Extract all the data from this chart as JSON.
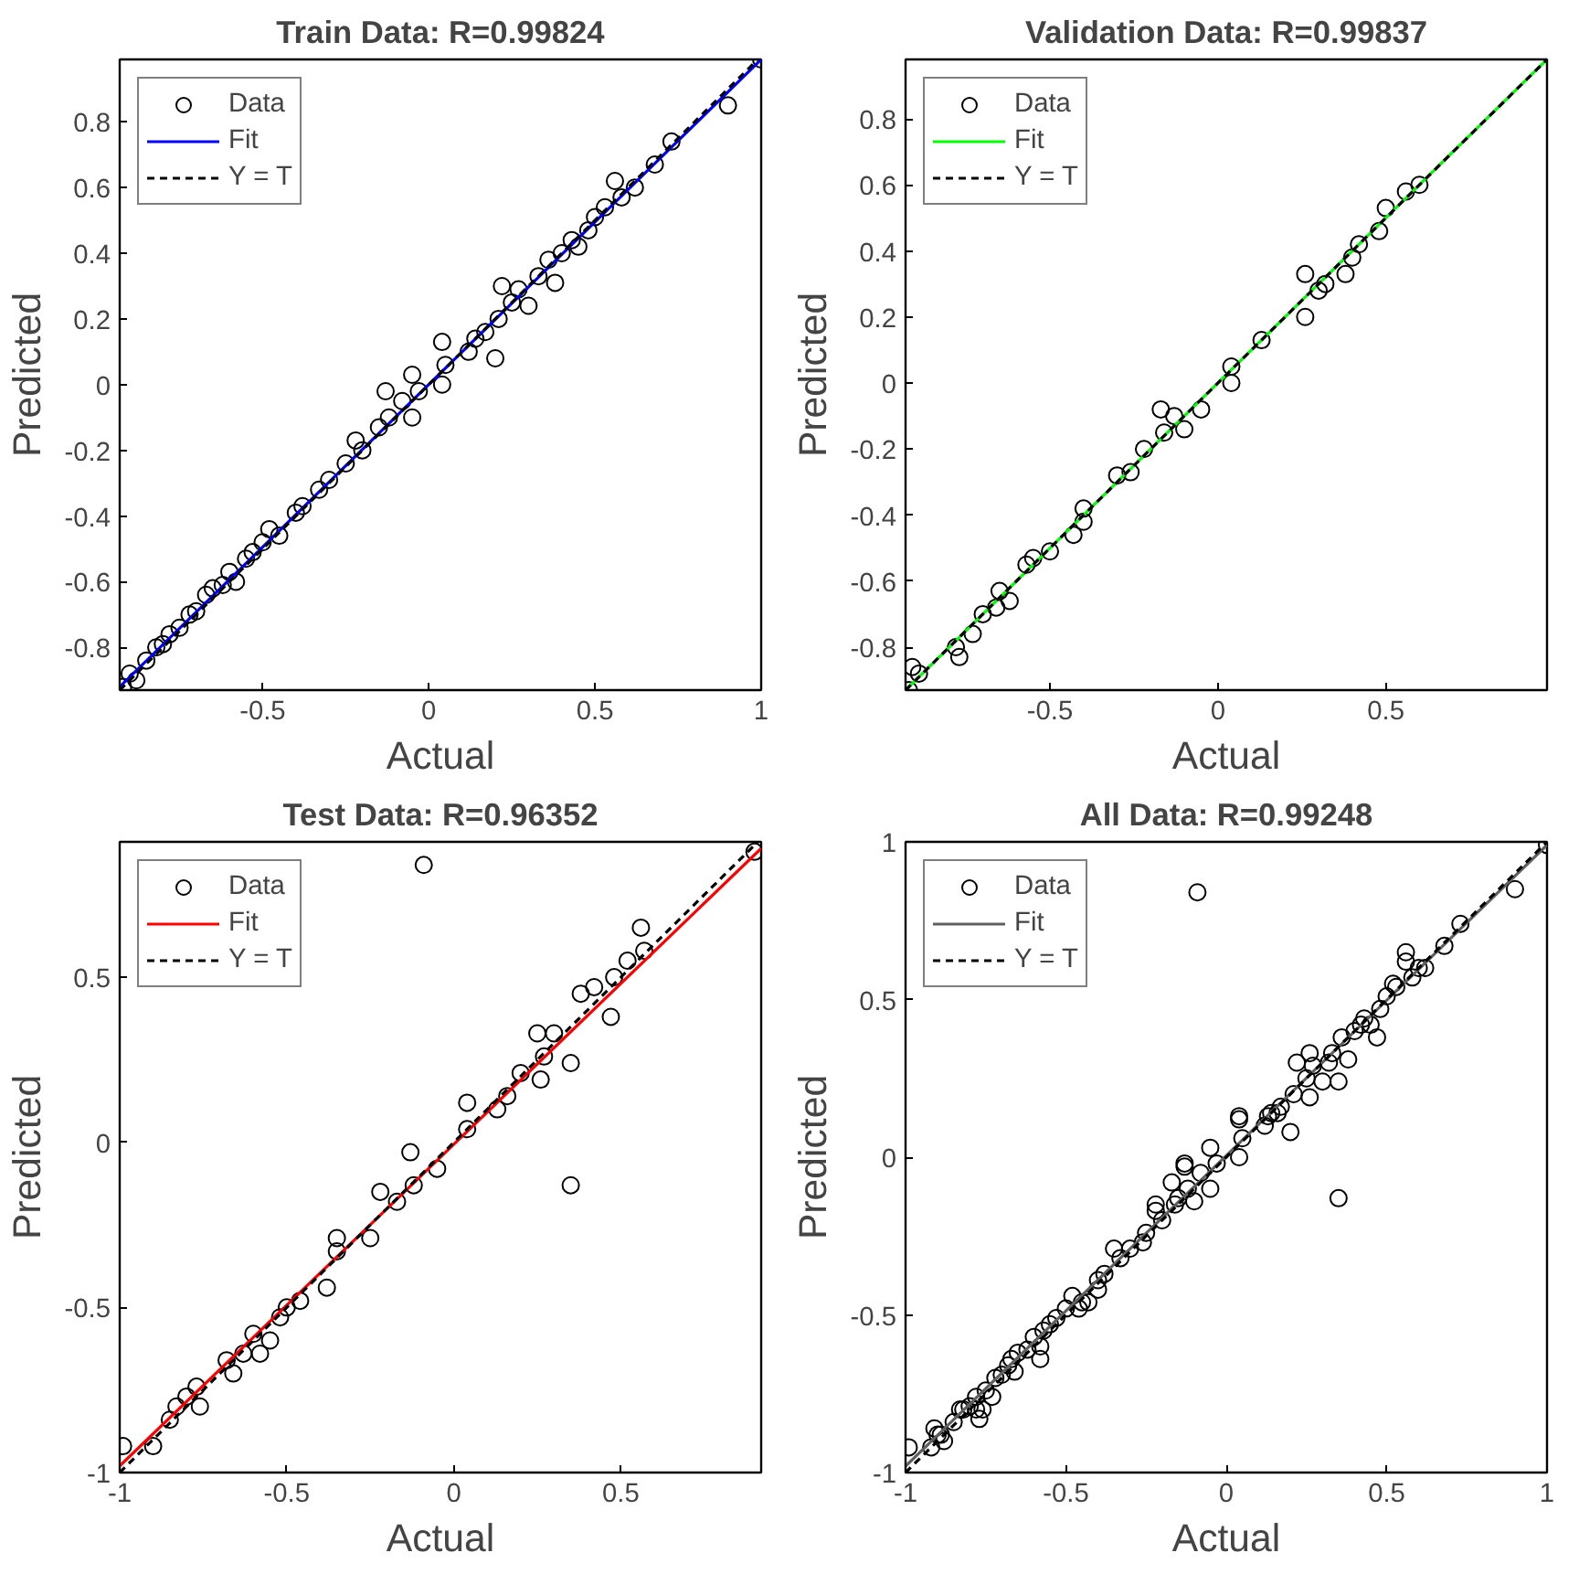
{
  "chart_data": [
    {
      "type": "scatter",
      "title": "Train Data: R=0.99824",
      "xlabel": "Actual",
      "ylabel": "Predicted",
      "xlim": [
        -0.93,
        1.0
      ],
      "ylim": [
        -0.93,
        0.99
      ],
      "xticks": [
        -0.5,
        0,
        0.5,
        1
      ],
      "yticks": [
        -0.8,
        -0.6,
        -0.4,
        -0.2,
        0,
        0.2,
        0.4,
        0.6,
        0.8
      ],
      "grid": false,
      "legend": "top left",
      "series": [
        {
          "name": "Data",
          "type": "scatter",
          "marker": "circle",
          "color": "#000000",
          "x": [
            -0.92,
            -0.9,
            -0.88,
            -0.85,
            -0.82,
            -0.8,
            -0.78,
            -0.75,
            -0.72,
            -0.7,
            -0.67,
            -0.65,
            -0.62,
            -0.6,
            -0.58,
            -0.55,
            -0.53,
            -0.5,
            -0.48,
            -0.45,
            -0.4,
            -0.38,
            -0.33,
            -0.3,
            -0.25,
            -0.22,
            -0.2,
            -0.15,
            -0.13,
            -0.12,
            -0.08,
            -0.05,
            -0.05,
            -0.03,
            0.04,
            0.04,
            0.05,
            0.12,
            0.14,
            0.17,
            0.2,
            0.21,
            0.22,
            0.25,
            0.27,
            0.3,
            0.33,
            0.36,
            0.38,
            0.4,
            0.43,
            0.45,
            0.48,
            0.5,
            0.53,
            0.56,
            0.58,
            0.62,
            0.68,
            0.73,
            0.9,
            1.0
          ],
          "values": [
            -0.92,
            -0.88,
            -0.9,
            -0.84,
            -0.8,
            -0.79,
            -0.76,
            -0.74,
            -0.7,
            -0.69,
            -0.64,
            -0.62,
            -0.61,
            -0.57,
            -0.6,
            -0.53,
            -0.51,
            -0.48,
            -0.44,
            -0.46,
            -0.39,
            -0.37,
            -0.32,
            -0.29,
            -0.24,
            -0.17,
            -0.2,
            -0.13,
            -0.02,
            -0.1,
            -0.05,
            0.03,
            -0.1,
            -0.02,
            0.13,
            0.0,
            0.06,
            0.1,
            0.14,
            0.16,
            0.08,
            0.2,
            0.3,
            0.25,
            0.29,
            0.24,
            0.33,
            0.38,
            0.31,
            0.4,
            0.44,
            0.42,
            0.47,
            0.51,
            0.54,
            0.62,
            0.57,
            0.6,
            0.67,
            0.74,
            0.85,
            0.99
          ]
        },
        {
          "name": "Fit",
          "type": "line",
          "line_style": "solid",
          "color": "#0000ff",
          "x": [
            -0.93,
            1.0
          ],
          "values": [
            -0.92,
            0.99
          ]
        },
        {
          "name": "Y = T",
          "type": "line",
          "line_style": "dashed",
          "color": "#000000",
          "x": [
            -0.93,
            0.99
          ],
          "values": [
            -0.93,
            0.99
          ]
        }
      ]
    },
    {
      "type": "scatter",
      "title": "Validation Data: R=0.99837",
      "xlabel": "Actual",
      "ylabel": "Predicted",
      "xlim": [
        -0.93,
        0.98
      ],
      "ylim": [
        -0.93,
        0.98
      ],
      "xticks": [
        -0.5,
        0,
        0.5
      ],
      "yticks": [
        -0.8,
        -0.6,
        -0.4,
        -0.2,
        0,
        0.2,
        0.4,
        0.6,
        0.8
      ],
      "grid": false,
      "legend": "top left",
      "series": [
        {
          "name": "Data",
          "type": "scatter",
          "marker": "circle",
          "color": "#000000",
          "x": [
            -0.92,
            -0.91,
            -0.89,
            -0.78,
            -0.77,
            -0.73,
            -0.7,
            -0.66,
            -0.65,
            -0.62,
            -0.57,
            -0.55,
            -0.5,
            -0.43,
            -0.4,
            -0.4,
            -0.3,
            -0.26,
            -0.22,
            -0.17,
            -0.16,
            -0.13,
            -0.1,
            -0.05,
            0.04,
            0.04,
            0.13,
            0.26,
            0.26,
            0.3,
            0.32,
            0.38,
            0.4,
            0.42,
            0.48,
            0.5,
            0.56,
            0.6
          ],
          "values": [
            -0.93,
            -0.86,
            -0.88,
            -0.8,
            -0.83,
            -0.76,
            -0.7,
            -0.68,
            -0.63,
            -0.66,
            -0.55,
            -0.53,
            -0.51,
            -0.46,
            -0.42,
            -0.38,
            -0.28,
            -0.27,
            -0.2,
            -0.08,
            -0.15,
            -0.1,
            -0.14,
            -0.08,
            0.05,
            0.0,
            0.13,
            0.2,
            0.33,
            0.28,
            0.3,
            0.33,
            0.38,
            0.42,
            0.46,
            0.53,
            0.58,
            0.6
          ]
        },
        {
          "name": "Fit",
          "type": "line",
          "line_style": "solid",
          "color": "#00ff00",
          "x": [
            -0.93,
            0.98
          ],
          "values": [
            -0.93,
            0.98
          ]
        },
        {
          "name": "Y = T",
          "type": "line",
          "line_style": "dashed",
          "color": "#000000",
          "x": [
            -0.93,
            0.98
          ],
          "values": [
            -0.93,
            0.98
          ]
        }
      ]
    },
    {
      "type": "scatter",
      "title": "Test Data: R=0.96352",
      "xlabel": "Actual",
      "ylabel": "Predicted",
      "xlim": [
        -1,
        0.92
      ],
      "ylim": [
        -1,
        0.91
      ],
      "xticks": [
        -1,
        -0.5,
        0,
        0.5
      ],
      "yticks": [
        -1,
        -0.5,
        0,
        0.5
      ],
      "grid": false,
      "legend": "top left",
      "series": [
        {
          "name": "Data",
          "type": "scatter",
          "marker": "circle",
          "color": "#000000",
          "x": [
            -0.99,
            -0.9,
            -0.85,
            -0.83,
            -0.8,
            -0.77,
            -0.76,
            -0.68,
            -0.66,
            -0.63,
            -0.6,
            -0.58,
            -0.55,
            -0.52,
            -0.5,
            -0.46,
            -0.38,
            -0.35,
            -0.35,
            -0.25,
            -0.22,
            -0.17,
            -0.13,
            -0.12,
            -0.09,
            -0.05,
            0.04,
            0.04,
            0.13,
            0.16,
            0.2,
            0.25,
            0.26,
            0.27,
            0.3,
            0.35,
            0.35,
            0.38,
            0.42,
            0.47,
            0.48,
            0.52,
            0.56,
            0.57,
            0.9
          ],
          "values": [
            -0.92,
            -0.92,
            -0.84,
            -0.8,
            -0.77,
            -0.74,
            -0.8,
            -0.66,
            -0.7,
            -0.64,
            -0.58,
            -0.64,
            -0.6,
            -0.53,
            -0.5,
            -0.48,
            -0.44,
            -0.33,
            -0.29,
            -0.29,
            -0.15,
            -0.18,
            -0.03,
            -0.13,
            0.84,
            -0.08,
            0.04,
            0.12,
            0.1,
            0.14,
            0.21,
            0.33,
            0.19,
            0.26,
            0.33,
            0.24,
            -0.13,
            0.45,
            0.47,
            0.38,
            0.5,
            0.55,
            0.65,
            0.58,
            0.88
          ]
        },
        {
          "name": "Fit",
          "type": "line",
          "line_style": "solid",
          "color": "#ff0000",
          "x": [
            -1,
            0.92
          ],
          "values": [
            -0.98,
            0.89
          ]
        },
        {
          "name": "Y = T",
          "type": "line",
          "line_style": "dashed",
          "color": "#000000",
          "x": [
            -1,
            0.91
          ],
          "values": [
            -1,
            0.91
          ]
        }
      ]
    },
    {
      "type": "scatter",
      "title": "All Data: R=0.99248",
      "xlabel": "Actual",
      "ylabel": "Predicted",
      "xlim": [
        -1,
        1
      ],
      "ylim": [
        -1,
        1
      ],
      "xticks": [
        -1,
        -0.5,
        0,
        0.5,
        1
      ],
      "yticks": [
        -1,
        -0.5,
        0,
        0.5,
        1
      ],
      "grid": false,
      "legend": "top left",
      "series": [
        {
          "name": "Data",
          "type": "scatter",
          "marker": "circle",
          "color": "#000000",
          "x": [
            -0.92,
            -0.9,
            -0.88,
            -0.85,
            -0.82,
            -0.8,
            -0.78,
            -0.75,
            -0.72,
            -0.7,
            -0.67,
            -0.65,
            -0.62,
            -0.6,
            -0.58,
            -0.55,
            -0.53,
            -0.5,
            -0.48,
            -0.45,
            -0.4,
            -0.38,
            -0.33,
            -0.3,
            -0.25,
            -0.22,
            -0.2,
            -0.15,
            -0.13,
            -0.12,
            -0.08,
            -0.05,
            -0.05,
            -0.03,
            0.04,
            0.04,
            0.05,
            0.12,
            0.14,
            0.17,
            0.2,
            0.21,
            0.22,
            0.25,
            0.27,
            0.3,
            0.33,
            0.36,
            0.38,
            0.4,
            0.43,
            0.45,
            0.48,
            0.5,
            0.53,
            0.56,
            0.58,
            0.62,
            0.68,
            0.73,
            0.9,
            1.0,
            -0.91,
            -0.89,
            -0.78,
            -0.77,
            -0.73,
            -0.66,
            -0.57,
            -0.43,
            -0.4,
            -0.26,
            -0.17,
            -0.16,
            -0.1,
            0.13,
            0.26,
            0.32,
            0.42,
            0.6,
            -0.99,
            -0.83,
            -0.76,
            -0.68,
            -0.58,
            -0.46,
            -0.35,
            -0.22,
            -0.13,
            -0.09,
            0.04,
            0.16,
            0.26,
            0.35,
            0.35,
            0.47,
            0.52,
            0.56
          ],
          "values": [
            -0.92,
            -0.88,
            -0.9,
            -0.84,
            -0.8,
            -0.79,
            -0.76,
            -0.74,
            -0.7,
            -0.69,
            -0.64,
            -0.62,
            -0.61,
            -0.57,
            -0.6,
            -0.53,
            -0.51,
            -0.48,
            -0.44,
            -0.46,
            -0.39,
            -0.37,
            -0.32,
            -0.29,
            -0.24,
            -0.17,
            -0.2,
            -0.13,
            -0.02,
            -0.1,
            -0.05,
            0.03,
            -0.1,
            -0.02,
            0.13,
            0.0,
            0.06,
            0.1,
            0.14,
            0.16,
            0.08,
            0.2,
            0.3,
            0.25,
            0.29,
            0.24,
            0.33,
            0.38,
            0.31,
            0.4,
            0.44,
            0.42,
            0.47,
            0.51,
            0.54,
            0.62,
            0.57,
            0.6,
            0.67,
            0.74,
            0.85,
            0.99,
            -0.86,
            -0.88,
            -0.8,
            -0.83,
            -0.76,
            -0.68,
            -0.55,
            -0.46,
            -0.42,
            -0.27,
            -0.08,
            -0.15,
            -0.14,
            0.13,
            0.33,
            0.3,
            0.42,
            0.6,
            -0.92,
            -0.8,
            -0.8,
            -0.66,
            -0.64,
            -0.48,
            -0.29,
            -0.15,
            -0.03,
            0.84,
            0.12,
            0.14,
            0.19,
            0.24,
            -0.13,
            0.38,
            0.55,
            0.65
          ]
        },
        {
          "name": "Fit",
          "type": "line",
          "line_style": "solid",
          "color": "#606060",
          "x": [
            -1,
            1
          ],
          "values": [
            -0.98,
            0.99
          ]
        },
        {
          "name": "Y = T",
          "type": "line",
          "line_style": "dashed",
          "color": "#000000",
          "x": [
            -1,
            1
          ],
          "values": [
            -1,
            1
          ]
        }
      ]
    }
  ]
}
